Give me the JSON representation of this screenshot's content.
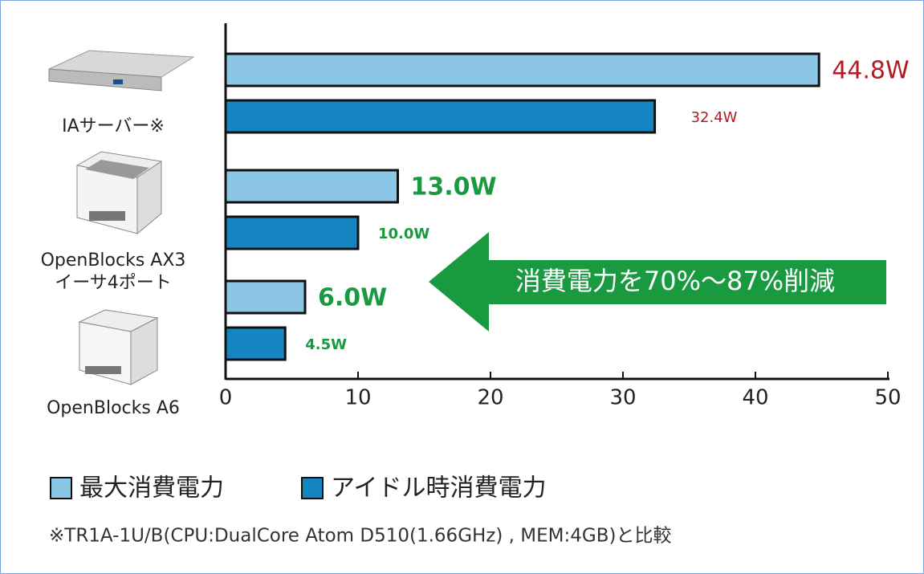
{
  "chart_data": {
    "type": "barh",
    "categories": [
      "IAサーバー※",
      "OpenBlocks AX3\nイーサ4ポート",
      "OpenBlocks A6"
    ],
    "series": [
      {
        "name": "最大消費電力",
        "color": "#8cc6e7",
        "values": [
          44.8,
          13.0,
          6.0
        ],
        "value_labels": [
          "44.8W",
          "13.0W",
          "6.0W"
        ]
      },
      {
        "name": "アイドル時消費電力",
        "color": "#1585c2",
        "values": [
          32.4,
          10.0,
          4.5
        ],
        "value_labels": [
          "32.4W",
          "10.0W",
          "4.5W"
        ]
      }
    ],
    "xlim": [
      0,
      50
    ],
    "xticks": [
      0,
      10,
      20,
      30,
      40,
      50
    ],
    "annotation": "消費電力を70%～87%削減",
    "footnote": "※TR1A-1U/B(CPU:DualCore Atom D510(1.66GHz) , MEM:4GB)と比較"
  }
}
